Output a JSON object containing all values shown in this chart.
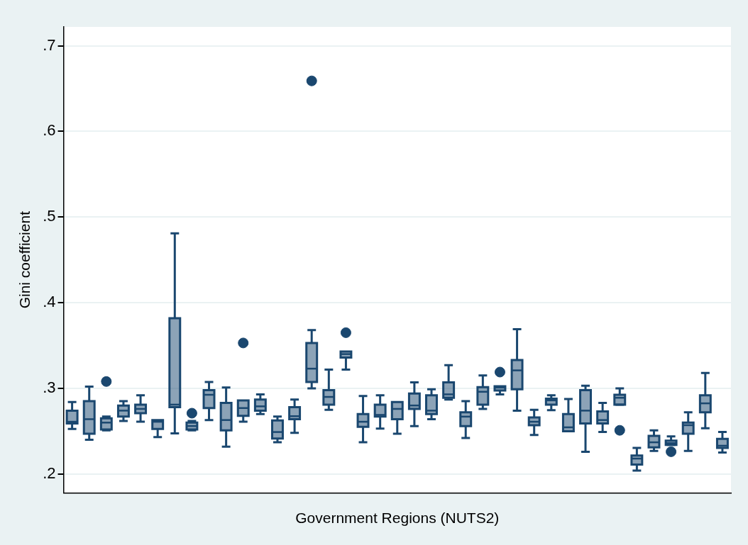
{
  "chart_data": {
    "type": "box",
    "xlabel": "Government Regions (NUTS2)",
    "ylabel": "Gini coefficient",
    "categories": [
      null,
      null,
      null,
      null,
      null,
      null,
      null,
      null,
      null,
      null,
      null,
      null,
      null,
      null,
      null,
      null,
      null,
      null,
      null,
      null,
      null,
      null,
      null,
      null,
      null,
      null,
      null,
      null,
      null,
      null,
      null,
      null,
      null,
      null,
      null,
      null,
      null,
      null,
      null
    ],
    "color": "#1a476f",
    "ylim": [
      0.178,
      0.722
    ],
    "yticks": [
      {
        "value": 0.2,
        "label": ".2"
      },
      {
        "value": 0.3,
        "label": ".3"
      },
      {
        "value": 0.4,
        "label": ".4"
      },
      {
        "value": 0.5,
        "label": ".5"
      },
      {
        "value": 0.6,
        "label": ".6"
      },
      {
        "value": 0.7,
        "label": ".7"
      }
    ],
    "grid": "y",
    "marker": "circle",
    "legend": false,
    "boxes": [
      {
        "low": 0.2525,
        "q1": 0.259,
        "median": 0.261,
        "q3": 0.274,
        "high": 0.284
      },
      {
        "low": 0.24,
        "q1": 0.247,
        "median": 0.264,
        "q3": 0.285,
        "high": 0.302
      },
      {
        "low": 0.251,
        "q1": 0.252,
        "median": 0.26,
        "q3": 0.265,
        "high": 0.267,
        "outliers": [
          0.308
        ]
      },
      {
        "low": 0.262,
        "q1": 0.267,
        "median": 0.274,
        "q3": 0.28,
        "high": 0.285
      },
      {
        "low": 0.261,
        "q1": 0.271,
        "median": 0.276,
        "q3": 0.281,
        "high": 0.292
      },
      {
        "low": 0.243,
        "q1": 0.2525,
        "median": 0.261,
        "q3": 0.263,
        "high": 0.263
      },
      {
        "low": 0.2475,
        "q1": 0.278,
        "median": 0.281,
        "q3": 0.382,
        "high": 0.481
      },
      {
        "low": 0.251,
        "q1": 0.252,
        "median": 0.256,
        "q3": 0.26,
        "high": 0.262,
        "outliers": [
          0.271
        ]
      },
      {
        "low": 0.263,
        "q1": 0.277,
        "median": 0.2925,
        "q3": 0.298,
        "high": 0.3075
      },
      {
        "low": 0.232,
        "q1": 0.251,
        "median": 0.263,
        "q3": 0.283,
        "high": 0.301
      },
      {
        "low": 0.261,
        "q1": 0.268,
        "median": 0.277,
        "q3": 0.286,
        "high": 0.286,
        "outliers": [
          0.353
        ]
      },
      {
        "low": 0.27,
        "q1": 0.274,
        "median": 0.279,
        "q3": 0.287,
        "high": 0.293
      },
      {
        "low": 0.237,
        "q1": 0.2415,
        "median": 0.249,
        "q3": 0.2625,
        "high": 0.267
      },
      {
        "low": 0.248,
        "q1": 0.264,
        "median": 0.2675,
        "q3": 0.278,
        "high": 0.287
      },
      {
        "low": 0.3,
        "q1": 0.3075,
        "median": 0.323,
        "q3": 0.353,
        "high": 0.368,
        "outliers": [
          0.659
        ]
      },
      {
        "low": 0.275,
        "q1": 0.281,
        "median": 0.29,
        "q3": 0.298,
        "high": 0.322
      },
      {
        "low": 0.322,
        "q1": 0.336,
        "median": 0.34,
        "q3": 0.343,
        "high": 0.343,
        "outliers": [
          0.365
        ]
      },
      {
        "low": 0.237,
        "q1": 0.255,
        "median": 0.261,
        "q3": 0.27,
        "high": 0.291
      },
      {
        "low": 0.253,
        "q1": 0.267,
        "median": 0.269,
        "q3": 0.281,
        "high": 0.292
      },
      {
        "low": 0.247,
        "q1": 0.264,
        "median": 0.276,
        "q3": 0.284,
        "high": 0.285
      },
      {
        "low": 0.256,
        "q1": 0.276,
        "median": 0.28,
        "q3": 0.294,
        "high": 0.307
      },
      {
        "low": 0.264,
        "q1": 0.27,
        "median": 0.274,
        "q3": 0.292,
        "high": 0.299
      },
      {
        "low": 0.287,
        "q1": 0.289,
        "median": 0.293,
        "q3": 0.307,
        "high": 0.327
      },
      {
        "low": 0.242,
        "q1": 0.256,
        "median": 0.267,
        "q3": 0.272,
        "high": 0.285
      },
      {
        "low": 0.276,
        "q1": 0.281,
        "median": 0.296,
        "q3": 0.3015,
        "high": 0.315
      },
      {
        "low": 0.293,
        "q1": 0.2975,
        "median": 0.301,
        "q3": 0.3025,
        "high": 0.3035,
        "outliers": [
          0.319
        ]
      },
      {
        "low": 0.274,
        "q1": 0.299,
        "median": 0.321,
        "q3": 0.333,
        "high": 0.369
      },
      {
        "low": 0.2455,
        "q1": 0.257,
        "median": 0.261,
        "q3": 0.266,
        "high": 0.275
      },
      {
        "low": 0.2745,
        "q1": 0.281,
        "median": 0.286,
        "q3": 0.288,
        "high": 0.292
      },
      {
        "low": 0.25,
        "q1": 0.25,
        "median": 0.2545,
        "q3": 0.27,
        "high": 0.2875
      },
      {
        "low": 0.226,
        "q1": 0.259,
        "median": 0.274,
        "q3": 0.298,
        "high": 0.303
      },
      {
        "low": 0.249,
        "q1": 0.259,
        "median": 0.263,
        "q3": 0.273,
        "high": 0.283
      },
      {
        "low": 0.281,
        "q1": 0.281,
        "median": 0.289,
        "q3": 0.2925,
        "high": 0.3,
        "outliers": [
          0.251
        ]
      },
      {
        "low": 0.204,
        "q1": 0.211,
        "median": 0.218,
        "q3": 0.2215,
        "high": 0.2305
      },
      {
        "low": 0.227,
        "q1": 0.231,
        "median": 0.237,
        "q3": 0.2445,
        "high": 0.251
      },
      {
        "low": 0.234,
        "q1": 0.234,
        "median": 0.236,
        "q3": 0.239,
        "high": 0.244,
        "outliers": [
          0.226
        ]
      },
      {
        "low": 0.227,
        "q1": 0.247,
        "median": 0.257,
        "q3": 0.26,
        "high": 0.272
      },
      {
        "low": 0.2535,
        "q1": 0.272,
        "median": 0.2825,
        "q3": 0.292,
        "high": 0.318
      },
      {
        "low": 0.225,
        "q1": 0.2305,
        "median": 0.233,
        "q3": 0.241,
        "high": 0.249
      }
    ]
  }
}
